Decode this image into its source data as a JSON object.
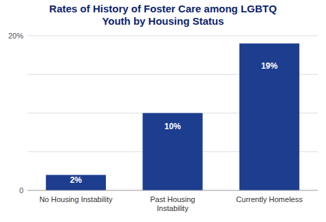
{
  "chart_data": {
    "type": "bar",
    "title": "Rates of History of Foster Care among LGBTQ\nYouth by Housing Status",
    "categories": [
      "No Housing Instability",
      "Past Housing\nInstability",
      "Currently Homeless"
    ],
    "values": [
      2,
      10,
      19
    ],
    "value_labels": [
      "2%",
      "10%",
      "19%"
    ],
    "data_labels": true,
    "color": "#1d3d8f",
    "ylim": [
      0,
      20
    ],
    "yticks": [
      0,
      {
        "value": 5,
        "label": null
      },
      {
        "value": 10,
        "label": null
      },
      {
        "value": 15,
        "label": null
      },
      {
        "value": 20,
        "label": "20%"
      }
    ],
    "grid": true
  }
}
